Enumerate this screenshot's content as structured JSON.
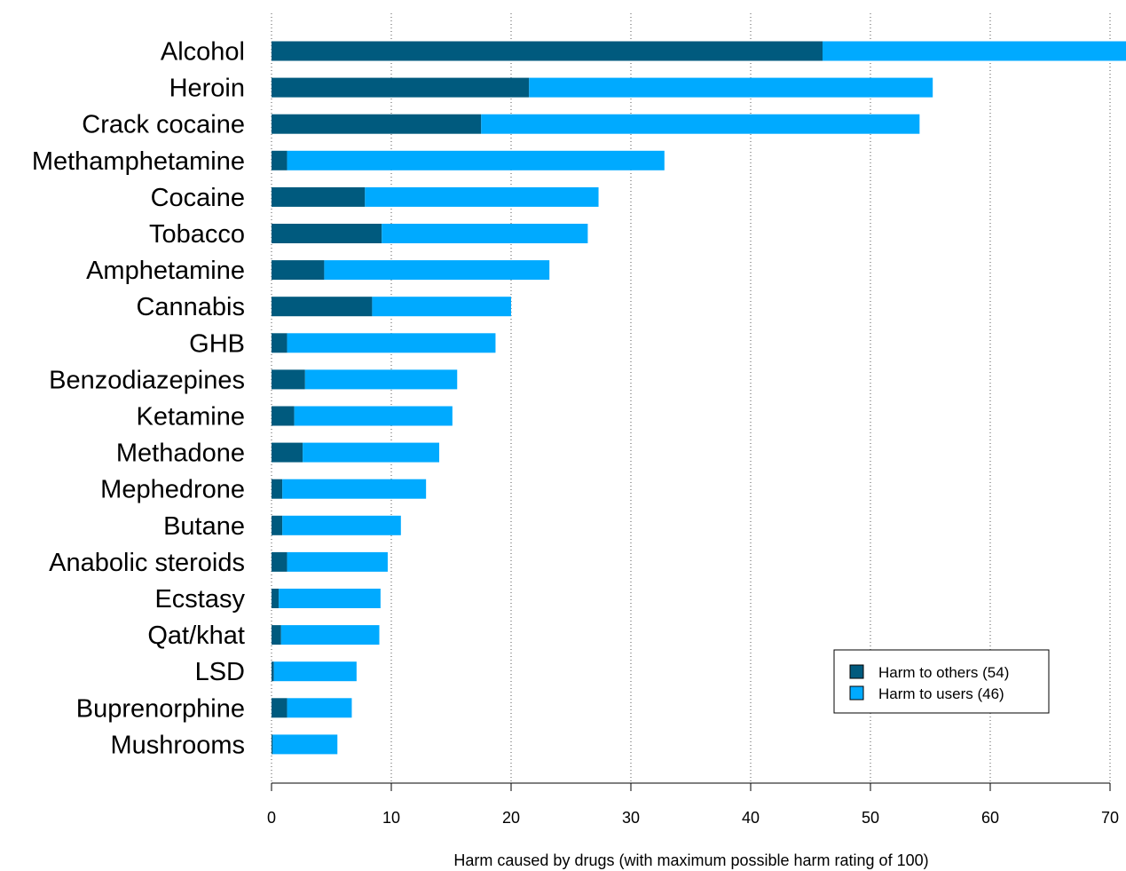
{
  "chart_data": {
    "type": "bar",
    "orientation": "horizontal",
    "stacked": true,
    "title": "",
    "xlabel": "Harm caused by drugs (with maximum possible harm rating of 100)",
    "ylabel": "",
    "xlim": [
      0,
      71.5
    ],
    "xticks": [
      0,
      10,
      20,
      30,
      40,
      50,
      60,
      70
    ],
    "grid": "vertical dotted",
    "legend_position": "bottom-right",
    "categories": [
      "Alcohol",
      "Heroin",
      "Crack cocaine",
      "Methamphetamine",
      "Cocaine",
      "Tobacco",
      "Amphetamine",
      "Cannabis",
      "GHB",
      "Benzodiazepines",
      "Ketamine",
      "Methadone",
      "Mephedrone",
      "Butane",
      "Anabolic steroids",
      "Ecstasy",
      "Qat/khat",
      "LSD",
      "Buprenorphine",
      "Mushrooms"
    ],
    "series": [
      {
        "name": "Harm to others (54)",
        "color": "#005a7e",
        "values": [
          46,
          21.5,
          17.5,
          1.3,
          7.8,
          9.2,
          4.4,
          8.4,
          1.3,
          2.8,
          1.9,
          2.6,
          0.9,
          0.9,
          1.3,
          0.6,
          0.8,
          0.2,
          1.3,
          0.1
        ]
      },
      {
        "name": "Harm to users (46)",
        "color": "#00aaff",
        "values": [
          26,
          33.7,
          36.6,
          31.5,
          19.5,
          17.2,
          18.8,
          11.6,
          17.4,
          12.7,
          13.2,
          11.4,
          12,
          9.9,
          8.4,
          8.5,
          8.2,
          6.9,
          5.4,
          5.4
        ]
      }
    ]
  }
}
